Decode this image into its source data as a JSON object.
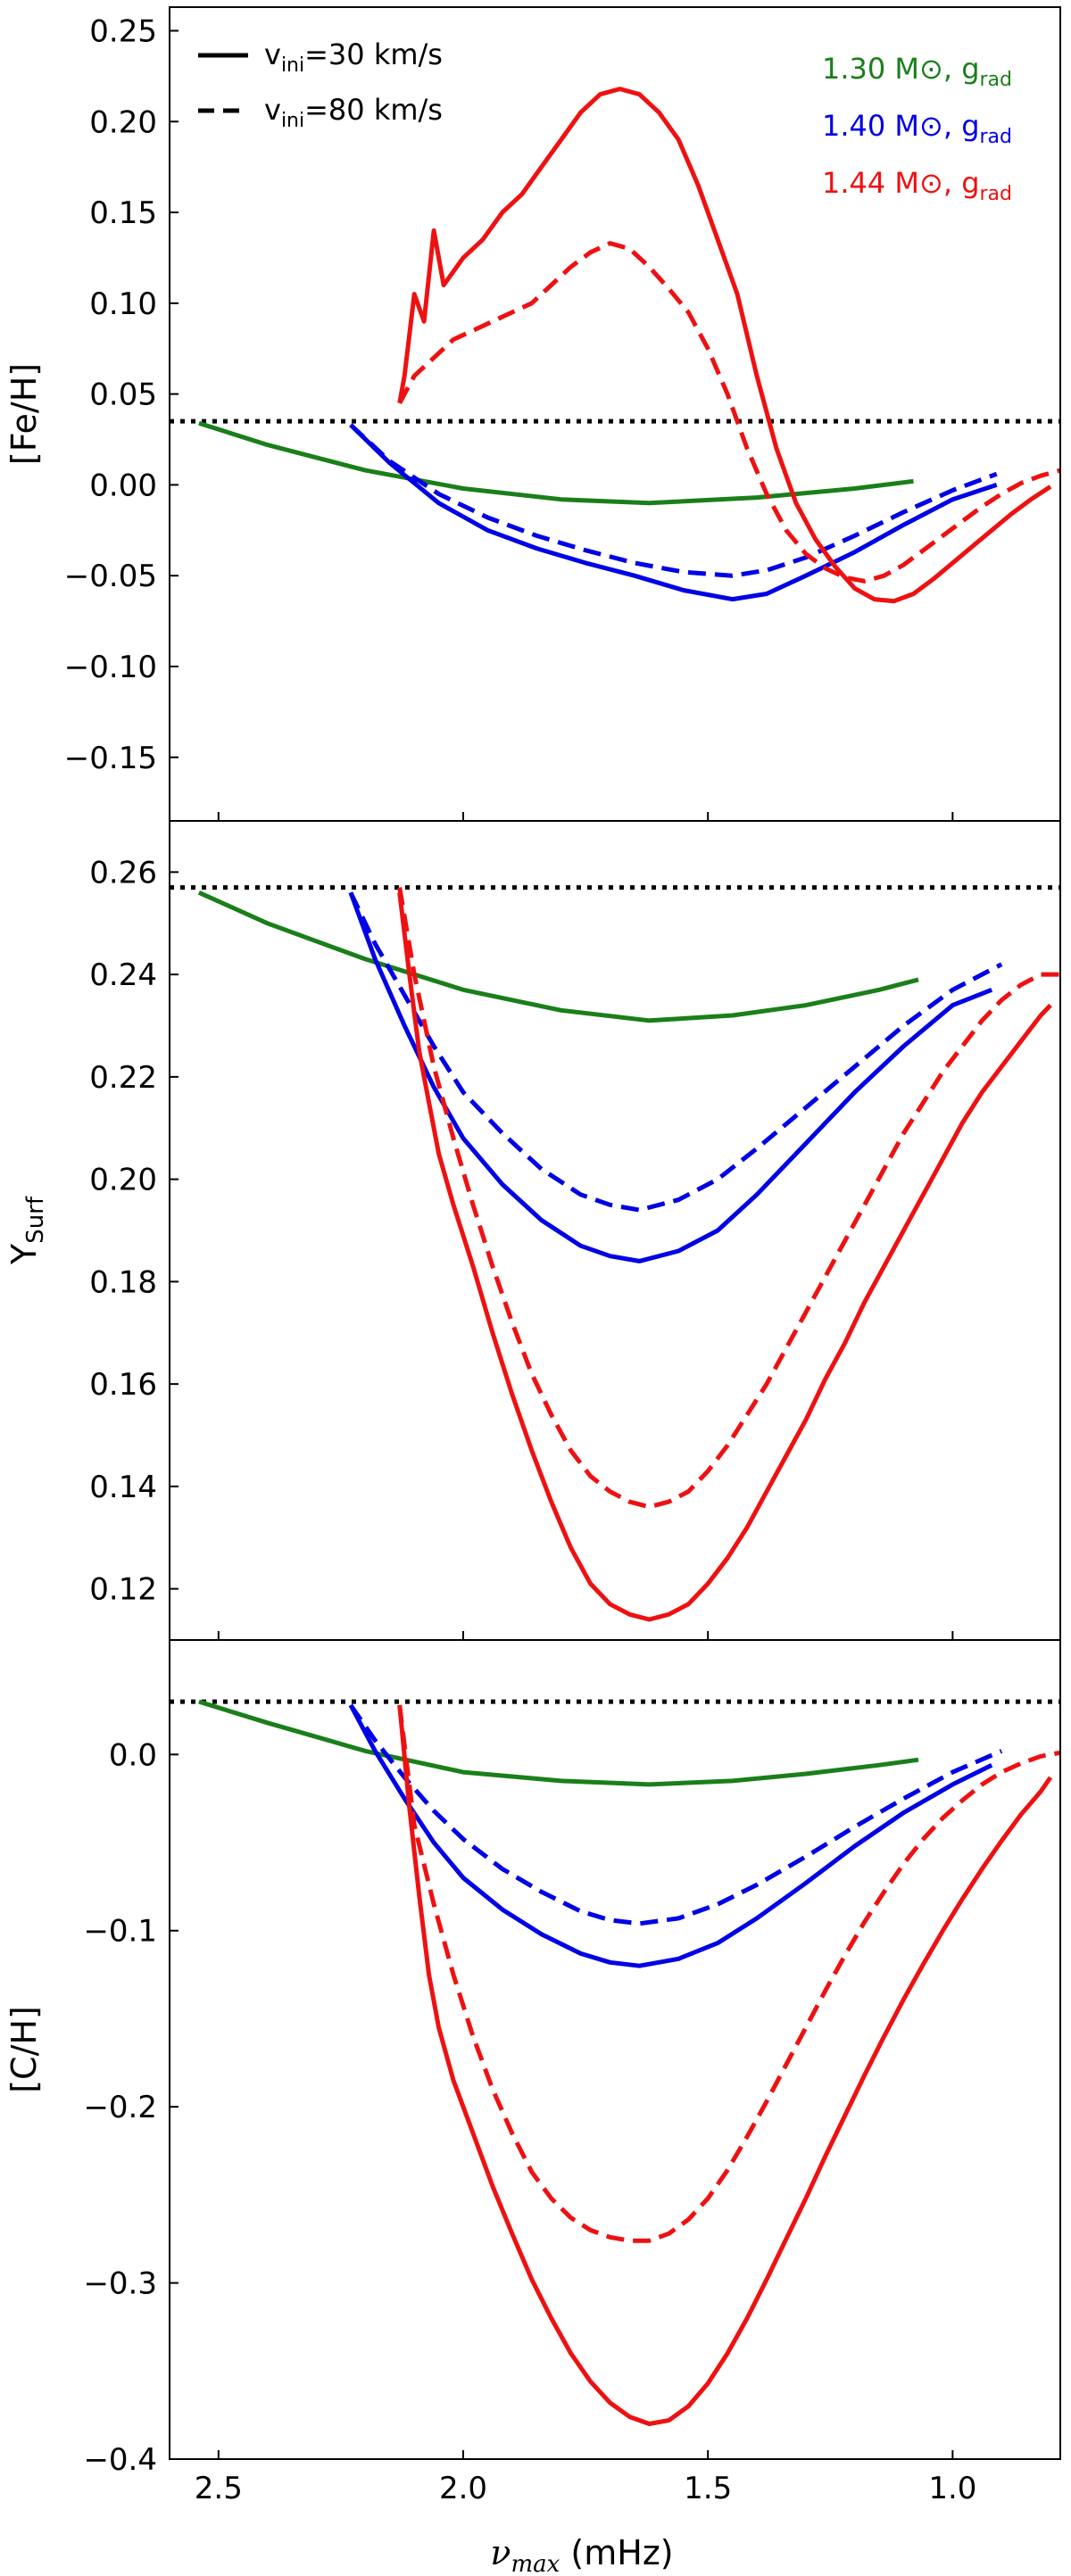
{
  "figure": {
    "xlabel": "νmax (mHz)",
    "xlabel_symbol": "ν",
    "xlabel_sub": "max",
    "xlabel_unit": " (mHz)",
    "xlim": [
      2.6,
      0.78
    ],
    "xticks": [
      2.5,
      2.0,
      1.5,
      1.0
    ],
    "xtick_labels": [
      "2.5",
      "2.0",
      "1.5",
      "1.0"
    ]
  },
  "legend": {
    "linestyles": [
      {
        "label": "v_ini=30 km/s",
        "main": "v",
        "sub": "ini",
        "rest": "=30 km/s",
        "style": "solid"
      },
      {
        "label": "v_ini=80 km/s",
        "main": "v",
        "sub": "ini",
        "rest": "=80 km/s",
        "style": "dashed"
      }
    ],
    "models": [
      {
        "label": "1.30 M⊙, g_rad",
        "text": "1.30 M⊙, g",
        "sub": "rad",
        "color": "#1a7f1a"
      },
      {
        "label": "1.40 M⊙, g_rad",
        "text": "1.40 M⊙, g",
        "sub": "rad",
        "color": "#0000e6"
      },
      {
        "label": "1.44 M⊙, g_rad",
        "text": "1.44 M⊙, g",
        "sub": "rad",
        "color": "#ee1111"
      }
    ]
  },
  "chart_data": [
    {
      "type": "line",
      "ylabel": "[Fe/H]",
      "ylim": [
        -0.185,
        0.263
      ],
      "yticks": [
        0.25,
        0.2,
        0.15,
        0.1,
        0.05,
        0.0,
        -0.05,
        -0.1,
        -0.15
      ],
      "ytick_labels": [
        "0.25",
        "0.20",
        "0.15",
        "0.10",
        "0.05",
        "0.00",
        "−0.05",
        "−0.10",
        "−0.15"
      ],
      "reference_line": 0.035,
      "series": [
        {
          "name": "1.30 M⊙ v_ini=30",
          "color": "#1a7f1a",
          "style": "solid",
          "x": [
            2.54,
            2.4,
            2.2,
            2.0,
            1.8,
            1.62,
            1.4,
            1.2,
            1.08
          ],
          "y": [
            0.034,
            0.022,
            0.008,
            -0.002,
            -0.008,
            -0.01,
            -0.007,
            -0.002,
            0.002
          ]
        },
        {
          "name": "1.40 M⊙ v_ini=30",
          "color": "#0000e6",
          "style": "solid",
          "x": [
            2.23,
            2.15,
            2.05,
            1.95,
            1.85,
            1.75,
            1.65,
            1.55,
            1.45,
            1.38,
            1.3,
            1.2,
            1.1,
            1.0,
            0.91
          ],
          "y": [
            0.033,
            0.012,
            -0.01,
            -0.025,
            -0.035,
            -0.043,
            -0.05,
            -0.058,
            -0.063,
            -0.06,
            -0.05,
            -0.037,
            -0.022,
            -0.008,
            0.0
          ]
        },
        {
          "name": "1.40 M⊙ v_ini=80",
          "color": "#0000e6",
          "style": "dashed",
          "x": [
            2.23,
            2.15,
            2.05,
            1.95,
            1.85,
            1.75,
            1.65,
            1.55,
            1.45,
            1.38,
            1.3,
            1.2,
            1.1,
            1.0,
            0.91
          ],
          "y": [
            0.033,
            0.013,
            -0.005,
            -0.018,
            -0.028,
            -0.036,
            -0.043,
            -0.048,
            -0.05,
            -0.047,
            -0.04,
            -0.028,
            -0.015,
            -0.003,
            0.006
          ]
        },
        {
          "name": "1.44 M⊙ v_ini=30",
          "color": "#ee1111",
          "style": "solid",
          "x": [
            2.13,
            2.12,
            2.1,
            2.08,
            2.06,
            2.04,
            2.0,
            1.96,
            1.92,
            1.88,
            1.84,
            1.8,
            1.76,
            1.72,
            1.68,
            1.64,
            1.6,
            1.56,
            1.52,
            1.48,
            1.44,
            1.4,
            1.36,
            1.32,
            1.28,
            1.24,
            1.2,
            1.16,
            1.12,
            1.08,
            1.04,
            1.0,
            0.96,
            0.92,
            0.88,
            0.84,
            0.8
          ],
          "y": [
            0.045,
            0.06,
            0.105,
            0.09,
            0.14,
            0.11,
            0.125,
            0.135,
            0.15,
            0.16,
            0.175,
            0.19,
            0.205,
            0.215,
            0.218,
            0.215,
            0.205,
            0.19,
            0.165,
            0.135,
            0.105,
            0.06,
            0.02,
            -0.01,
            -0.03,
            -0.045,
            -0.057,
            -0.063,
            -0.064,
            -0.06,
            -0.052,
            -0.043,
            -0.034,
            -0.025,
            -0.016,
            -0.008,
            -0.001
          ]
        },
        {
          "name": "1.44 M⊙ v_ini=80",
          "color": "#ee1111",
          "style": "dashed",
          "x": [
            2.13,
            2.1,
            2.06,
            2.02,
            1.98,
            1.94,
            1.9,
            1.86,
            1.82,
            1.78,
            1.74,
            1.7,
            1.66,
            1.62,
            1.58,
            1.54,
            1.5,
            1.46,
            1.42,
            1.38,
            1.34,
            1.3,
            1.26,
            1.22,
            1.18,
            1.14,
            1.1,
            1.06,
            1.02,
            0.98,
            0.94,
            0.9,
            0.86,
            0.82,
            0.78
          ],
          "y": [
            0.045,
            0.06,
            0.07,
            0.08,
            0.085,
            0.09,
            0.095,
            0.1,
            0.11,
            0.12,
            0.128,
            0.133,
            0.13,
            0.12,
            0.108,
            0.095,
            0.075,
            0.05,
            0.02,
            -0.005,
            -0.025,
            -0.038,
            -0.046,
            -0.051,
            -0.053,
            -0.05,
            -0.044,
            -0.036,
            -0.028,
            -0.02,
            -0.012,
            -0.005,
            0.001,
            0.005,
            0.008
          ]
        }
      ]
    },
    {
      "type": "line",
      "ylabel": "Y_Surf",
      "ylabel_main": "Y",
      "ylabel_sub": "Surf",
      "ylim": [
        0.11,
        0.27
      ],
      "yticks": [
        0.26,
        0.24,
        0.22,
        0.2,
        0.18,
        0.16,
        0.14,
        0.12
      ],
      "ytick_labels": [
        "0.26",
        "0.24",
        "0.22",
        "0.20",
        "0.18",
        "0.16",
        "0.14",
        "0.12"
      ],
      "reference_line": 0.257,
      "series": [
        {
          "name": "1.30 M⊙ v_ini=30",
          "color": "#1a7f1a",
          "style": "solid",
          "x": [
            2.54,
            2.4,
            2.2,
            2.0,
            1.8,
            1.62,
            1.45,
            1.3,
            1.15,
            1.07
          ],
          "y": [
            0.256,
            0.25,
            0.243,
            0.237,
            0.233,
            0.231,
            0.232,
            0.234,
            0.237,
            0.239
          ]
        },
        {
          "name": "1.40 M⊙ v_ini=30",
          "color": "#0000e6",
          "style": "solid",
          "x": [
            2.23,
            2.18,
            2.12,
            2.06,
            2.0,
            1.92,
            1.84,
            1.76,
            1.7,
            1.64,
            1.56,
            1.48,
            1.4,
            1.3,
            1.2,
            1.1,
            1.0,
            0.92
          ],
          "y": [
            0.256,
            0.243,
            0.23,
            0.218,
            0.208,
            0.199,
            0.192,
            0.187,
            0.185,
            0.184,
            0.186,
            0.19,
            0.197,
            0.207,
            0.217,
            0.226,
            0.234,
            0.237
          ]
        },
        {
          "name": "1.40 M⊙ v_ini=80",
          "color": "#0000e6",
          "style": "dashed",
          "x": [
            2.23,
            2.18,
            2.12,
            2.06,
            2.0,
            1.92,
            1.84,
            1.76,
            1.7,
            1.64,
            1.56,
            1.48,
            1.4,
            1.3,
            1.2,
            1.1,
            1.0,
            0.9
          ],
          "y": [
            0.256,
            0.246,
            0.236,
            0.226,
            0.217,
            0.209,
            0.202,
            0.197,
            0.195,
            0.194,
            0.196,
            0.2,
            0.206,
            0.214,
            0.222,
            0.23,
            0.237,
            0.242
          ]
        },
        {
          "name": "1.44 M⊙ v_ini=30",
          "color": "#ee1111",
          "style": "solid",
          "x": [
            2.13,
            2.11,
            2.09,
            2.07,
            2.05,
            2.02,
            1.98,
            1.94,
            1.9,
            1.86,
            1.82,
            1.78,
            1.74,
            1.7,
            1.66,
            1.62,
            1.58,
            1.54,
            1.5,
            1.46,
            1.42,
            1.38,
            1.34,
            1.3,
            1.26,
            1.22,
            1.18,
            1.14,
            1.1,
            1.06,
            1.02,
            0.98,
            0.94,
            0.9,
            0.86,
            0.82,
            0.8
          ],
          "y": [
            0.256,
            0.24,
            0.225,
            0.215,
            0.205,
            0.195,
            0.183,
            0.17,
            0.158,
            0.147,
            0.137,
            0.128,
            0.121,
            0.117,
            0.115,
            0.114,
            0.115,
            0.117,
            0.121,
            0.126,
            0.132,
            0.139,
            0.146,
            0.153,
            0.161,
            0.168,
            0.176,
            0.183,
            0.19,
            0.197,
            0.204,
            0.211,
            0.217,
            0.222,
            0.227,
            0.232,
            0.234
          ]
        },
        {
          "name": "1.44 M⊙ v_ini=80",
          "color": "#ee1111",
          "style": "dashed",
          "x": [
            2.13,
            2.1,
            2.06,
            2.02,
            1.98,
            1.94,
            1.9,
            1.86,
            1.82,
            1.78,
            1.74,
            1.7,
            1.66,
            1.62,
            1.58,
            1.54,
            1.5,
            1.46,
            1.42,
            1.38,
            1.34,
            1.3,
            1.26,
            1.22,
            1.18,
            1.14,
            1.1,
            1.06,
            1.02,
            0.98,
            0.94,
            0.9,
            0.86,
            0.82,
            0.78
          ],
          "y": [
            0.257,
            0.24,
            0.222,
            0.208,
            0.195,
            0.183,
            0.172,
            0.162,
            0.154,
            0.147,
            0.142,
            0.139,
            0.137,
            0.136,
            0.137,
            0.139,
            0.143,
            0.148,
            0.154,
            0.16,
            0.167,
            0.174,
            0.181,
            0.188,
            0.195,
            0.202,
            0.209,
            0.215,
            0.221,
            0.226,
            0.231,
            0.235,
            0.238,
            0.24,
            0.24
          ]
        }
      ]
    },
    {
      "type": "line",
      "ylabel": "[C/H]",
      "ylim": [
        -0.4,
        0.065
      ],
      "yticks": [
        0.0,
        -0.1,
        -0.2,
        -0.3,
        -0.4
      ],
      "ytick_labels": [
        "0.0",
        "−0.1",
        "−0.2",
        "−0.3",
        "−0.4"
      ],
      "reference_line": 0.03,
      "series": [
        {
          "name": "1.30 M⊙ v_ini=30",
          "color": "#1a7f1a",
          "style": "solid",
          "x": [
            2.54,
            2.4,
            2.2,
            2.0,
            1.8,
            1.62,
            1.45,
            1.3,
            1.15,
            1.07
          ],
          "y": [
            0.03,
            0.018,
            0.002,
            -0.01,
            -0.015,
            -0.017,
            -0.015,
            -0.011,
            -0.006,
            -0.003
          ]
        },
        {
          "name": "1.40 M⊙ v_ini=30",
          "color": "#0000e6",
          "style": "solid",
          "x": [
            2.23,
            2.18,
            2.12,
            2.06,
            2.0,
            1.92,
            1.84,
            1.76,
            1.7,
            1.64,
            1.56,
            1.48,
            1.4,
            1.3,
            1.2,
            1.1,
            1.0,
            0.92
          ],
          "y": [
            0.028,
            0.002,
            -0.025,
            -0.05,
            -0.07,
            -0.088,
            -0.102,
            -0.113,
            -0.118,
            -0.12,
            -0.116,
            -0.107,
            -0.093,
            -0.073,
            -0.052,
            -0.033,
            -0.017,
            -0.006
          ]
        },
        {
          "name": "1.40 M⊙ v_ini=80",
          "color": "#0000e6",
          "style": "dashed",
          "x": [
            2.23,
            2.18,
            2.12,
            2.06,
            2.0,
            1.92,
            1.84,
            1.76,
            1.7,
            1.64,
            1.56,
            1.48,
            1.4,
            1.3,
            1.2,
            1.1,
            1.0,
            0.9
          ],
          "y": [
            0.028,
            0.008,
            -0.013,
            -0.032,
            -0.048,
            -0.065,
            -0.078,
            -0.089,
            -0.094,
            -0.096,
            -0.093,
            -0.085,
            -0.074,
            -0.058,
            -0.041,
            -0.025,
            -0.01,
            0.002
          ]
        },
        {
          "name": "1.44 M⊙ v_ini=30",
          "color": "#ee1111",
          "style": "solid",
          "x": [
            2.13,
            2.11,
            2.09,
            2.07,
            2.05,
            2.02,
            1.98,
            1.94,
            1.9,
            1.86,
            1.82,
            1.78,
            1.74,
            1.7,
            1.66,
            1.62,
            1.58,
            1.54,
            1.5,
            1.46,
            1.42,
            1.38,
            1.34,
            1.3,
            1.26,
            1.22,
            1.18,
            1.14,
            1.1,
            1.06,
            1.02,
            0.98,
            0.94,
            0.9,
            0.86,
            0.82,
            0.8
          ],
          "y": [
            0.028,
            -0.03,
            -0.08,
            -0.125,
            -0.155,
            -0.185,
            -0.215,
            -0.245,
            -0.272,
            -0.298,
            -0.32,
            -0.34,
            -0.356,
            -0.368,
            -0.376,
            -0.38,
            -0.378,
            -0.37,
            -0.357,
            -0.34,
            -0.32,
            -0.298,
            -0.275,
            -0.252,
            -0.228,
            -0.205,
            -0.182,
            -0.16,
            -0.139,
            -0.119,
            -0.1,
            -0.082,
            -0.065,
            -0.049,
            -0.034,
            -0.021,
            -0.013
          ]
        },
        {
          "name": "1.44 M⊙ v_ini=80",
          "color": "#ee1111",
          "style": "dashed",
          "x": [
            2.13,
            2.1,
            2.06,
            2.02,
            1.98,
            1.94,
            1.9,
            1.86,
            1.82,
            1.78,
            1.74,
            1.7,
            1.66,
            1.62,
            1.58,
            1.54,
            1.5,
            1.46,
            1.42,
            1.38,
            1.34,
            1.3,
            1.26,
            1.22,
            1.18,
            1.14,
            1.1,
            1.06,
            1.02,
            0.98,
            0.94,
            0.9,
            0.86,
            0.82,
            0.78
          ],
          "y": [
            0.028,
            -0.04,
            -0.085,
            -0.125,
            -0.16,
            -0.19,
            -0.215,
            -0.237,
            -0.252,
            -0.263,
            -0.27,
            -0.274,
            -0.276,
            -0.276,
            -0.272,
            -0.264,
            -0.252,
            -0.236,
            -0.217,
            -0.197,
            -0.176,
            -0.155,
            -0.134,
            -0.114,
            -0.095,
            -0.078,
            -0.062,
            -0.048,
            -0.036,
            -0.026,
            -0.017,
            -0.01,
            -0.005,
            -0.001,
            0.001
          ]
        }
      ]
    }
  ]
}
